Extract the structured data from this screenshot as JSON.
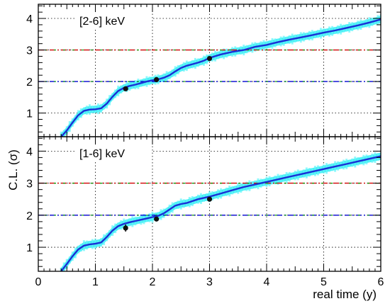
{
  "chart_data": {
    "type": "line",
    "xlabel": "real time (y)",
    "ylabel": "C.L. (σ)",
    "xlim": [
      0,
      6
    ],
    "ylim": [
      0.25,
      4.45
    ],
    "xticks": [
      "0",
      "1",
      "2",
      "3",
      "4",
      "5",
      "6"
    ],
    "yticks": [
      "1",
      "2",
      "3",
      "4"
    ],
    "grid": "dotted",
    "reference_lines": [
      {
        "y": 3,
        "colors": [
          "#d00000",
          "#00a000"
        ],
        "style": "dash-dot"
      },
      {
        "y": 2,
        "colors": [
          "#0000d0",
          "#00a000"
        ],
        "style": "dash-dot"
      }
    ],
    "colors": {
      "curve": "#1a2fd6",
      "band": "#22e8f0"
    },
    "panels": [
      {
        "label": "[2-6] keV",
        "curve": {
          "x": [
            0.4,
            0.5,
            0.6,
            0.7,
            0.8,
            0.9,
            1.0,
            1.1,
            1.2,
            1.3,
            1.4,
            1.5,
            1.6,
            1.7,
            1.8,
            1.9,
            2.0,
            2.1,
            2.2,
            2.3,
            2.4,
            2.5,
            2.6,
            2.7,
            2.8,
            2.9,
            3.0,
            3.2,
            3.4,
            3.6,
            3.8,
            4.0,
            4.2,
            4.4,
            4.6,
            4.8,
            5.0,
            5.2,
            5.4,
            5.6,
            5.8,
            6.0
          ],
          "y": [
            0.25,
            0.45,
            0.7,
            0.93,
            1.07,
            1.11,
            1.12,
            1.15,
            1.3,
            1.52,
            1.7,
            1.8,
            1.86,
            1.9,
            1.95,
            2.0,
            2.04,
            2.07,
            2.12,
            2.2,
            2.32,
            2.43,
            2.5,
            2.55,
            2.6,
            2.66,
            2.75,
            2.86,
            2.94,
            3.0,
            3.1,
            3.16,
            3.25,
            3.33,
            3.4,
            3.47,
            3.55,
            3.62,
            3.7,
            3.78,
            3.87,
            3.97
          ]
        },
        "band_halfwidth": 0.11,
        "points": [
          {
            "x": 1.53,
            "y": 1.77,
            "err": 0.06
          },
          {
            "x": 2.07,
            "y": 2.06,
            "err": 0.05
          },
          {
            "x": 3.0,
            "y": 2.73,
            "err": 0.05
          }
        ]
      },
      {
        "label": "[1-6] keV",
        "curve": {
          "x": [
            0.4,
            0.5,
            0.6,
            0.7,
            0.8,
            0.9,
            1.0,
            1.1,
            1.2,
            1.3,
            1.4,
            1.5,
            1.6,
            1.7,
            1.8,
            1.9,
            2.0,
            2.1,
            2.2,
            2.3,
            2.4,
            2.5,
            2.6,
            2.7,
            2.8,
            2.9,
            3.0,
            3.2,
            3.4,
            3.6,
            3.8,
            4.0,
            4.2,
            4.4,
            4.6,
            4.8,
            5.0,
            5.2,
            5.4,
            5.6,
            5.8,
            6.0
          ],
          "y": [
            0.25,
            0.48,
            0.72,
            0.93,
            1.05,
            1.09,
            1.11,
            1.15,
            1.32,
            1.52,
            1.66,
            1.73,
            1.78,
            1.82,
            1.86,
            1.9,
            1.94,
            1.98,
            2.06,
            2.18,
            2.3,
            2.35,
            2.38,
            2.44,
            2.5,
            2.54,
            2.58,
            2.68,
            2.78,
            2.88,
            2.96,
            3.04,
            3.12,
            3.2,
            3.28,
            3.36,
            3.44,
            3.52,
            3.6,
            3.68,
            3.76,
            3.84
          ]
        },
        "band_halfwidth": 0.11,
        "points": [
          {
            "x": 1.53,
            "y": 1.6,
            "err": 0.11
          },
          {
            "x": 2.07,
            "y": 1.88,
            "err": 0.07
          },
          {
            "x": 3.0,
            "y": 2.5,
            "err": 0.05
          }
        ]
      }
    ]
  }
}
